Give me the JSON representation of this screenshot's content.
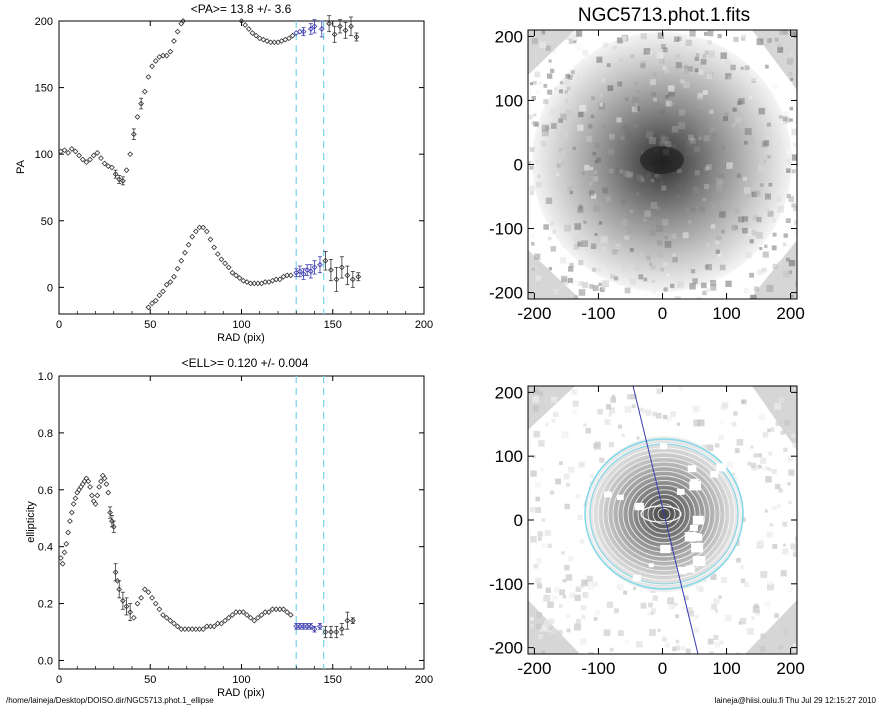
{
  "footer": {
    "path": "/home/laineja/Desktop/DOISO.dir/NGC5713.phot.1_ellipse",
    "stamp": "laineja@hiisi.oulu.fi  Thu Jul 29 12:15:27 2010"
  },
  "chart_data": [
    {
      "type": "scatter",
      "title": "<PA>=  13.8 +/-   3.6",
      "xlabel": "RAD (pix)",
      "ylabel": "PA",
      "xlim": [
        0,
        200
      ],
      "ylim": [
        -20,
        200
      ],
      "xticks": [
        0,
        50,
        100,
        150,
        200
      ],
      "yticks": [
        0,
        50,
        100,
        150,
        200
      ],
      "vlines": [
        130,
        145
      ],
      "series": [
        {
          "values": [
            [
              1,
              102
            ],
            [
              3,
              103
            ],
            [
              5,
              101
            ],
            [
              7,
              104
            ],
            [
              9,
              102
            ],
            [
              11,
              99
            ],
            [
              13,
              96
            ],
            [
              15,
              94
            ],
            [
              17,
              96
            ],
            [
              19,
              99
            ],
            [
              21,
              101
            ],
            [
              23,
              97
            ],
            [
              25,
              93
            ],
            [
              27,
              91
            ],
            [
              29,
              90
            ],
            [
              31,
              85
            ],
            [
              33,
              81
            ],
            [
              35,
              80
            ],
            [
              37,
              88
            ],
            [
              39,
              100
            ],
            [
              41,
              115
            ],
            [
              43,
              128
            ],
            [
              45,
              138
            ],
            [
              47,
              147
            ],
            [
              49,
              158
            ],
            [
              51,
              166
            ],
            [
              53,
              170
            ],
            [
              55,
              173
            ],
            [
              57,
              174
            ],
            [
              59,
              174
            ],
            [
              61,
              177
            ],
            [
              63,
              185
            ],
            [
              65,
              192
            ],
            [
              67,
              198
            ],
            [
              68,
              200
            ]
          ],
          "errors": [
            [
              31,
              3
            ],
            [
              33,
              3
            ],
            [
              35,
              3
            ],
            [
              41,
              4
            ],
            [
              45,
              4
            ]
          ]
        },
        {
          "values": [
            [
              49,
              -15
            ],
            [
              51,
              -12
            ],
            [
              53,
              -10
            ],
            [
              55,
              -6
            ],
            [
              57,
              -3
            ],
            [
              59,
              2
            ],
            [
              61,
              4
            ],
            [
              63,
              8
            ],
            [
              65,
              14
            ],
            [
              67,
              20
            ],
            [
              69,
              26
            ],
            [
              71,
              32
            ],
            [
              73,
              38
            ],
            [
              75,
              42
            ],
            [
              77,
              45
            ],
            [
              79,
              45
            ],
            [
              81,
              42
            ],
            [
              83,
              36
            ],
            [
              85,
              30
            ],
            [
              87,
              25
            ],
            [
              89,
              21
            ],
            [
              91,
              18
            ],
            [
              93,
              15
            ],
            [
              95,
              11
            ],
            [
              97,
              9
            ],
            [
              99,
              7
            ],
            [
              101,
              5
            ],
            [
              103,
              4
            ],
            [
              105,
              3
            ],
            [
              107,
              3
            ],
            [
              109,
              3
            ],
            [
              111,
              3
            ],
            [
              113,
              4
            ],
            [
              115,
              4
            ],
            [
              117,
              5
            ],
            [
              119,
              6
            ],
            [
              121,
              6
            ],
            [
              123,
              8
            ],
            [
              125,
              9
            ],
            [
              127,
              9
            ]
          ],
          "errors": []
        },
        {
          "values": [
            [
              100,
              200
            ],
            [
              102,
              197
            ],
            [
              104,
              194
            ],
            [
              106,
              191
            ],
            [
              108,
              189
            ],
            [
              110,
              187
            ],
            [
              112,
              186
            ],
            [
              114,
              185
            ],
            [
              116,
              184
            ],
            [
              118,
              184
            ],
            [
              120,
              184
            ],
            [
              122,
              185
            ],
            [
              124,
              186
            ],
            [
              126,
              187
            ],
            [
              128,
              189
            ],
            [
              130,
              191
            ],
            [
              132,
              192
            ],
            [
              134,
              192
            ],
            [
              138,
              194
            ],
            [
              140,
              196
            ],
            [
              144,
              194
            ],
            [
              148,
              198
            ],
            [
              151,
              190
            ],
            [
              154,
              196
            ],
            [
              157,
              193
            ],
            [
              160,
              196
            ],
            [
              163,
              188
            ]
          ],
          "errors": [
            [
              134,
              3
            ],
            [
              138,
              4
            ],
            [
              140,
              5
            ],
            [
              144,
              6
            ],
            [
              148,
              6
            ],
            [
              151,
              6
            ],
            [
              154,
              5
            ],
            [
              157,
              6
            ],
            [
              160,
              7
            ],
            [
              163,
              3
            ]
          ]
        },
        {
          "values": [
            [
              130,
              11
            ],
            [
              132,
              12
            ],
            [
              134,
              10
            ],
            [
              136,
              13
            ],
            [
              138,
              12
            ],
            [
              140,
              15
            ],
            [
              143,
              17
            ],
            [
              146,
              20
            ],
            [
              149,
              13
            ],
            [
              152,
              6
            ],
            [
              155,
              15
            ],
            [
              158,
              9
            ],
            [
              161,
              6
            ],
            [
              164,
              8
            ]
          ],
          "errors": [
            [
              130,
              3
            ],
            [
              132,
              4
            ],
            [
              134,
              4
            ],
            [
              136,
              4
            ],
            [
              138,
              5
            ],
            [
              140,
              5
            ],
            [
              143,
              6
            ],
            [
              146,
              7
            ],
            [
              149,
              8
            ],
            [
              152,
              9
            ],
            [
              155,
              8
            ],
            [
              158,
              7
            ],
            [
              161,
              6
            ],
            [
              164,
              3
            ]
          ]
        }
      ],
      "highlight_range": [
        130,
        145
      ],
      "highlight_color": "#3b3bb0",
      "vline_color": "#7fd8e8"
    },
    {
      "type": "scatter",
      "title": "<ELL>= 0.120 +/-  0.004",
      "xlabel": "RAD (pix)",
      "ylabel": "ellipticity",
      "xlim": [
        0,
        200
      ],
      "ylim": [
        -0.03,
        1.0
      ],
      "xticks": [
        0,
        50,
        100,
        150,
        200
      ],
      "yticks": [
        0.0,
        0.2,
        0.4,
        0.6,
        0.8,
        1.0
      ],
      "ytick_labels": [
        "0.0",
        "0.2",
        "0.4",
        "0.6",
        "0.8",
        "1.0"
      ],
      "vlines": [
        130,
        145
      ],
      "series": [
        {
          "values": [
            [
              1,
              0.36
            ],
            [
              2,
              0.34
            ],
            [
              3,
              0.38
            ],
            [
              4,
              0.41
            ],
            [
              5,
              0.45
            ],
            [
              6,
              0.49
            ],
            [
              7,
              0.52
            ],
            [
              8,
              0.55
            ],
            [
              9,
              0.57
            ],
            [
              10,
              0.59
            ],
            [
              11,
              0.6
            ],
            [
              12,
              0.61
            ],
            [
              13,
              0.62
            ],
            [
              14,
              0.63
            ],
            [
              15,
              0.64
            ],
            [
              16,
              0.63
            ],
            [
              17,
              0.61
            ],
            [
              18,
              0.58
            ],
            [
              19,
              0.56
            ],
            [
              20,
              0.55
            ],
            [
              21,
              0.58
            ],
            [
              22,
              0.61
            ],
            [
              23,
              0.63
            ],
            [
              24,
              0.65
            ],
            [
              25,
              0.64
            ],
            [
              26,
              0.62
            ],
            [
              27,
              0.59
            ],
            [
              28,
              0.52
            ],
            [
              29,
              0.49
            ],
            [
              30,
              0.47
            ],
            [
              31,
              0.31
            ],
            [
              32,
              0.28
            ],
            [
              33,
              0.25
            ],
            [
              35,
              0.21
            ],
            [
              37,
              0.19
            ],
            [
              39,
              0.17
            ],
            [
              41,
              0.15
            ],
            [
              43,
              0.2
            ],
            [
              45,
              0.22
            ],
            [
              47,
              0.25
            ],
            [
              49,
              0.24
            ],
            [
              51,
              0.22
            ],
            [
              53,
              0.2
            ],
            [
              55,
              0.18
            ],
            [
              57,
              0.16
            ],
            [
              59,
              0.15
            ],
            [
              61,
              0.14
            ],
            [
              63,
              0.13
            ],
            [
              65,
              0.12
            ],
            [
              67,
              0.11
            ],
            [
              69,
              0.11
            ],
            [
              71,
              0.11
            ],
            [
              73,
              0.11
            ],
            [
              75,
              0.11
            ],
            [
              77,
              0.11
            ],
            [
              79,
              0.11
            ],
            [
              81,
              0.12
            ],
            [
              83,
              0.12
            ],
            [
              85,
              0.12
            ],
            [
              87,
              0.13
            ],
            [
              89,
              0.13
            ],
            [
              91,
              0.14
            ],
            [
              93,
              0.15
            ],
            [
              95,
              0.16
            ],
            [
              97,
              0.17
            ],
            [
              99,
              0.17
            ],
            [
              101,
              0.17
            ],
            [
              103,
              0.16
            ],
            [
              105,
              0.15
            ],
            [
              107,
              0.14
            ],
            [
              109,
              0.15
            ],
            [
              111,
              0.16
            ],
            [
              113,
              0.17
            ],
            [
              115,
              0.17
            ],
            [
              117,
              0.18
            ],
            [
              119,
              0.18
            ],
            [
              121,
              0.18
            ],
            [
              123,
              0.18
            ],
            [
              125,
              0.17
            ],
            [
              127,
              0.16
            ]
          ],
          "errors": [
            [
              28,
              0.02
            ],
            [
              29,
              0.02
            ],
            [
              30,
              0.02
            ],
            [
              31,
              0.03
            ],
            [
              33,
              0.03
            ],
            [
              35,
              0.03
            ],
            [
              37,
              0.03
            ],
            [
              39,
              0.03
            ]
          ]
        },
        {
          "values": [
            [
              130,
              0.12
            ],
            [
              132,
              0.12
            ],
            [
              134,
              0.12
            ],
            [
              136,
              0.12
            ],
            [
              138,
              0.12
            ],
            [
              140,
              0.11
            ],
            [
              143,
              0.12
            ],
            [
              146,
              0.1
            ],
            [
              149,
              0.1
            ],
            [
              152,
              0.1
            ],
            [
              155,
              0.11
            ],
            [
              158,
              0.14
            ],
            [
              161,
              0.14
            ]
          ],
          "errors": [
            [
              130,
              0.01
            ],
            [
              132,
              0.01
            ],
            [
              134,
              0.01
            ],
            [
              136,
              0.01
            ],
            [
              138,
              0.01
            ],
            [
              140,
              0.01
            ],
            [
              143,
              0.01
            ],
            [
              146,
              0.02
            ],
            [
              149,
              0.02
            ],
            [
              152,
              0.02
            ],
            [
              155,
              0.02
            ],
            [
              158,
              0.03
            ],
            [
              161,
              0.01
            ]
          ]
        }
      ],
      "highlight_range": [
        130,
        145
      ],
      "highlight_color": "#3b3bb0",
      "vline_color": "#7fd8e8"
    },
    {
      "type": "heatmap",
      "title": "NGC5713.phot.1.fits",
      "xlim": [
        -210,
        210
      ],
      "ylim": [
        -210,
        210
      ],
      "xticks": [
        -200,
        -100,
        0,
        100,
        200
      ],
      "yticks": [
        -200,
        -100,
        0,
        100,
        200
      ],
      "core_color": "#2a2a2a",
      "outer_color": "#f2f2f2",
      "masked_color": "#d6d6d6"
    },
    {
      "type": "heatmap",
      "title": "",
      "xlim": [
        -210,
        210
      ],
      "ylim": [
        -210,
        210
      ],
      "xticks": [
        -200,
        -100,
        0,
        100,
        200
      ],
      "yticks": [
        -200,
        -100,
        0,
        100,
        200
      ],
      "ellipse_color": "#7fd8e8",
      "axis_line_color": "#3b3bb0",
      "masked_color": "#d6d6d6"
    }
  ]
}
